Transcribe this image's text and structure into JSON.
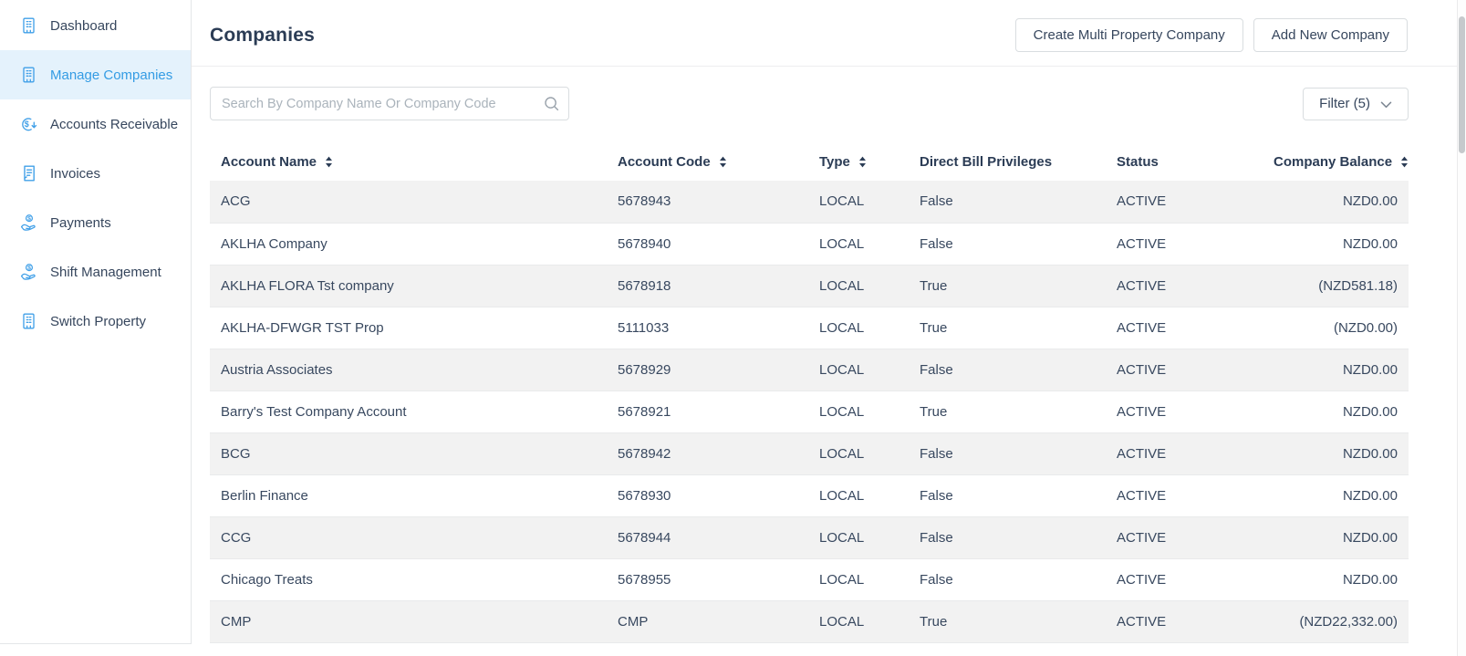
{
  "colors": {
    "accent_blue": "#41a0e8",
    "selected_text": "#349ce4",
    "selected_bg": "#e4f2fc",
    "navy_text": "#2b3c55",
    "row_alt_bg": "#f2f2f2",
    "border": "#d9dde0"
  },
  "sidebar": {
    "items": [
      {
        "label": "Dashboard",
        "icon": "building-icon",
        "selected": false
      },
      {
        "label": "Manage Companies",
        "icon": "building-icon",
        "selected": true
      },
      {
        "label": "Accounts Receivable",
        "icon": "dollar-circle-icon",
        "selected": false
      },
      {
        "label": "Invoices",
        "icon": "invoice-icon",
        "selected": false
      },
      {
        "label": "Payments",
        "icon": "hand-coin-icon",
        "selected": false
      },
      {
        "label": "Shift Management",
        "icon": "hand-coin-icon",
        "selected": false
      },
      {
        "label": "Switch Property",
        "icon": "building-icon",
        "selected": false
      }
    ]
  },
  "header": {
    "title": "Companies",
    "buttons": {
      "create_multi": "Create Multi Property Company",
      "add_new": "Add New Company"
    }
  },
  "toolbar": {
    "search_placeholder": "Search By Company Name Or Company Code",
    "search_value": "",
    "filter_label": "Filter (5)"
  },
  "table": {
    "columns": [
      {
        "label": "Account Name",
        "sortable": true
      },
      {
        "label": "Account Code",
        "sortable": true
      },
      {
        "label": "Type",
        "sortable": true
      },
      {
        "label": "Direct Bill Privileges",
        "sortable": false
      },
      {
        "label": "Status",
        "sortable": false
      },
      {
        "label": "Company Balance",
        "sortable": true
      }
    ],
    "rows": [
      [
        "ACG",
        "5678943",
        "LOCAL",
        "False",
        "ACTIVE",
        "NZD0.00"
      ],
      [
        "AKLHA Company",
        "5678940",
        "LOCAL",
        "False",
        "ACTIVE",
        "NZD0.00"
      ],
      [
        "AKLHA FLORA Tst company",
        "5678918",
        "LOCAL",
        "True",
        "ACTIVE",
        "(NZD581.18)"
      ],
      [
        "AKLHA-DFWGR TST Prop",
        "5111033",
        "LOCAL",
        "True",
        "ACTIVE",
        "(NZD0.00)"
      ],
      [
        "Austria Associates",
        "5678929",
        "LOCAL",
        "False",
        "ACTIVE",
        "NZD0.00"
      ],
      [
        "Barry's Test Company Account",
        "5678921",
        "LOCAL",
        "True",
        "ACTIVE",
        "NZD0.00"
      ],
      [
        "BCG",
        "5678942",
        "LOCAL",
        "False",
        "ACTIVE",
        "NZD0.00"
      ],
      [
        "Berlin Finance",
        "5678930",
        "LOCAL",
        "False",
        "ACTIVE",
        "NZD0.00"
      ],
      [
        "CCG",
        "5678944",
        "LOCAL",
        "False",
        "ACTIVE",
        "NZD0.00"
      ],
      [
        "Chicago Treats",
        "5678955",
        "LOCAL",
        "False",
        "ACTIVE",
        "NZD0.00"
      ],
      [
        "CMP",
        "CMP",
        "LOCAL",
        "True",
        "ACTIVE",
        "(NZD22,332.00)"
      ]
    ]
  }
}
